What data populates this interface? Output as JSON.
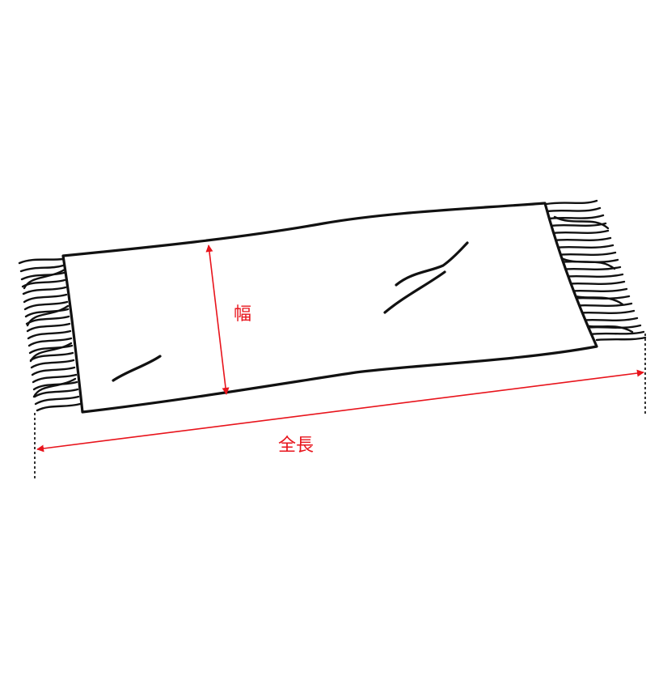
{
  "labels": {
    "width": "幅",
    "length": "全長"
  },
  "colors": {
    "dimension": "#e8141c",
    "outline": "#111111",
    "background": "#ffffff"
  },
  "icons": {
    "object": "scarf-with-fringe-icon"
  }
}
